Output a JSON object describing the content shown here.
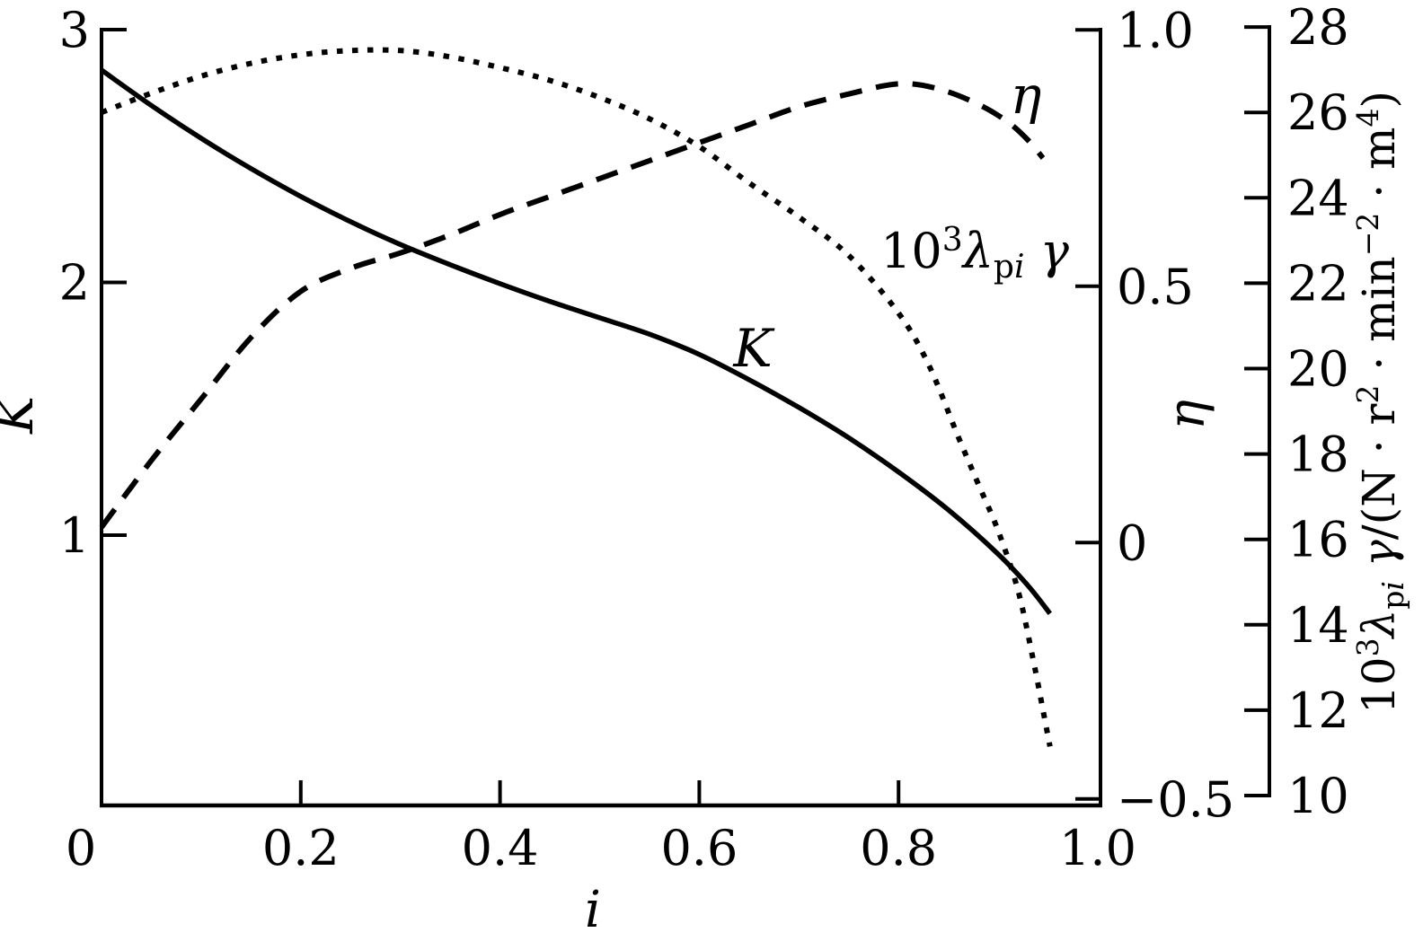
{
  "chart_data": {
    "type": "line",
    "title": "",
    "background_color": "#ffffff",
    "stroke_color": "#000000",
    "grid": false,
    "x_axis": {
      "label": "i",
      "range": [
        0,
        1.0
      ],
      "ticks": [
        {
          "v": 0,
          "label": "0"
        },
        {
          "v": 0.2,
          "label": "0.2"
        },
        {
          "v": 0.4,
          "label": "0.4"
        },
        {
          "v": 0.6,
          "label": "0.6"
        },
        {
          "v": 0.8,
          "label": "0.8"
        },
        {
          "v": 1.0,
          "label": "1.0"
        }
      ]
    },
    "left_axis": {
      "label": "K",
      "range": [
        0,
        3
      ],
      "ticks": [
        {
          "v": 3,
          "label": "3"
        },
        {
          "v": 2,
          "label": "2"
        },
        {
          "v": 1,
          "label": "1"
        }
      ]
    },
    "eta_axis": {
      "label": "η",
      "range": [
        -0.5,
        1.0
      ],
      "ticks": [
        {
          "v": 1.0,
          "label": "1.0"
        },
        {
          "v": 0.5,
          "label": "0.5"
        },
        {
          "v": 0,
          "label": "0"
        },
        {
          "v": -0.5,
          "label": "−0.5"
        }
      ]
    },
    "lambda_axis": {
      "label_segments": [
        {
          "t": "10"
        },
        {
          "t": "3",
          "pos": "sup"
        },
        {
          "t": "λ",
          "it": true
        },
        {
          "t": "p",
          "pos": "sub"
        },
        {
          "t": "i",
          "pos": "sub",
          "it": true
        },
        {
          "t": " γ",
          "it": true
        },
        {
          "t": "/(N · r"
        },
        {
          "t": "2",
          "pos": "sup"
        },
        {
          "t": " · min"
        },
        {
          "t": "−2",
          "pos": "sup"
        },
        {
          "t": " · m"
        },
        {
          "t": "4",
          "pos": "sup"
        },
        {
          "t": ")"
        }
      ],
      "range": [
        10,
        28
      ],
      "ticks": [
        {
          "v": 28,
          "label": "28"
        },
        {
          "v": 26,
          "label": "26"
        },
        {
          "v": 24,
          "label": "24"
        },
        {
          "v": 22,
          "label": "22"
        },
        {
          "v": 20,
          "label": "20"
        },
        {
          "v": 18,
          "label": "18"
        },
        {
          "v": 16,
          "label": "16"
        },
        {
          "v": 14,
          "label": "14"
        },
        {
          "v": 12,
          "label": "12"
        },
        {
          "v": 10,
          "label": "10"
        }
      ]
    },
    "series": [
      {
        "name": "k",
        "label": "K",
        "style": "solid",
        "axis": "left",
        "points": [
          [
            0,
            2.84
          ],
          [
            0.05,
            2.7
          ],
          [
            0.1,
            2.57
          ],
          [
            0.15,
            2.45
          ],
          [
            0.2,
            2.34
          ],
          [
            0.25,
            2.24
          ],
          [
            0.3,
            2.15
          ],
          [
            0.35,
            2.07
          ],
          [
            0.4,
            1.995
          ],
          [
            0.45,
            1.925
          ],
          [
            0.5,
            1.86
          ],
          [
            0.55,
            1.795
          ],
          [
            0.6,
            1.715
          ],
          [
            0.65,
            1.615
          ],
          [
            0.7,
            1.505
          ],
          [
            0.75,
            1.385
          ],
          [
            0.8,
            1.25
          ],
          [
            0.85,
            1.1
          ],
          [
            0.9,
            0.925
          ],
          [
            0.93,
            0.8
          ],
          [
            0.952,
            0.69
          ]
        ]
      },
      {
        "name": "eta",
        "label": "η",
        "style": "dashed",
        "axis": "eta",
        "points": [
          [
            0,
            0.03
          ],
          [
            0.05,
            0.16
          ],
          [
            0.1,
            0.28
          ],
          [
            0.15,
            0.4
          ],
          [
            0.2,
            0.49
          ],
          [
            0.25,
            0.535
          ],
          [
            0.3,
            0.565
          ],
          [
            0.35,
            0.6
          ],
          [
            0.4,
            0.64
          ],
          [
            0.45,
            0.675
          ],
          [
            0.5,
            0.71
          ],
          [
            0.55,
            0.745
          ],
          [
            0.6,
            0.78
          ],
          [
            0.65,
            0.815
          ],
          [
            0.7,
            0.85
          ],
          [
            0.75,
            0.875
          ],
          [
            0.8,
            0.895
          ],
          [
            0.84,
            0.885
          ],
          [
            0.88,
            0.855
          ],
          [
            0.91,
            0.82
          ],
          [
            0.93,
            0.785
          ],
          [
            0.945,
            0.75
          ]
        ]
      },
      {
        "name": "lambda-pi-gamma",
        "label_segments": [
          {
            "t": "10"
          },
          {
            "t": "3",
            "pos": "sup"
          },
          {
            "t": "λ",
            "it": true
          },
          {
            "t": "p",
            "pos": "sub"
          },
          {
            "t": "i",
            "pos": "sub",
            "it": true
          },
          {
            "t": " γ",
            "it": true
          }
        ],
        "style": "dotted",
        "axis": "lambda",
        "points": [
          [
            0,
            26.0
          ],
          [
            0.05,
            26.45
          ],
          [
            0.1,
            26.85
          ],
          [
            0.15,
            27.15
          ],
          [
            0.2,
            27.35
          ],
          [
            0.25,
            27.45
          ],
          [
            0.3,
            27.45
          ],
          [
            0.35,
            27.3
          ],
          [
            0.4,
            27.05
          ],
          [
            0.45,
            26.75
          ],
          [
            0.5,
            26.35
          ],
          [
            0.55,
            25.85
          ],
          [
            0.6,
            25.2
          ],
          [
            0.65,
            24.35
          ],
          [
            0.7,
            23.55
          ],
          [
            0.75,
            22.65
          ],
          [
            0.8,
            21.3
          ],
          [
            0.83,
            20.1
          ],
          [
            0.86,
            18.4
          ],
          [
            0.88,
            17.3
          ],
          [
            0.9,
            16.2
          ],
          [
            0.92,
            14.8
          ],
          [
            0.935,
            13.2
          ],
          [
            0.945,
            12.0
          ],
          [
            0.952,
            11.15
          ]
        ]
      }
    ]
  }
}
